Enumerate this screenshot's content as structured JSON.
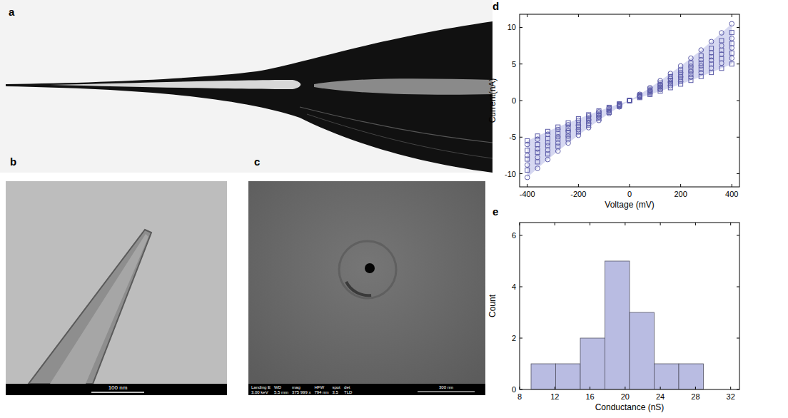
{
  "panel_labels": [
    "a",
    "b",
    "c",
    "d",
    "e"
  ],
  "images": {
    "b": {
      "scale_bar": "100 nm"
    },
    "c": {
      "scale_bar": "300 nm",
      "info_header": [
        "Landing E",
        "WD",
        "mag",
        "HFW",
        "spot",
        "det"
      ],
      "info_values": [
        "3.00 keV",
        "5.5 mm",
        "375 999 x",
        "794 nm",
        "3.5",
        "TLD"
      ]
    }
  },
  "chart_data": [
    {
      "type": "scatter",
      "xlabel": "Voltage (mV)",
      "ylabel": "Current(nA)",
      "x": [
        -400,
        -360,
        -320,
        -280,
        -240,
        -200,
        -160,
        -120,
        -80,
        -40,
        0,
        40,
        80,
        120,
        160,
        200,
        240,
        280,
        320,
        360,
        400
      ],
      "series": [
        {
          "marker": "circle",
          "color": "#5c5ca8",
          "values": [
            -10.5,
            -9.26,
            -8.06,
            -6.91,
            -5.8,
            -4.73,
            -3.7,
            -2.71,
            -1.76,
            -0.86,
            0,
            0.86,
            1.76,
            2.71,
            3.7,
            4.73,
            5.8,
            6.91,
            8.06,
            9.26,
            10.5
          ]
        },
        {
          "marker": "square",
          "color": "#5c5ca8",
          "values": [
            -9.5,
            -8.38,
            -7.3,
            -6.25,
            -5.24,
            -4.28,
            -3.34,
            -2.45,
            -1.6,
            -0.78,
            0,
            0.76,
            1.56,
            2.4,
            3.27,
            4.19,
            5.13,
            6.12,
            7.14,
            8.2,
            9.3
          ]
        },
        {
          "marker": "circle",
          "color": "#5c5ca8",
          "values": [
            -8.8,
            -7.76,
            -6.76,
            -5.79,
            -4.86,
            -3.96,
            -3.1,
            -2.27,
            -1.48,
            -0.72,
            0,
            0.7,
            1.43,
            2.19,
            2.99,
            3.83,
            4.69,
            5.59,
            6.53,
            7.5,
            8.5
          ]
        },
        {
          "marker": "square",
          "color": "#5c5ca8",
          "values": [
            -8.0,
            -7.06,
            -6.14,
            -5.26,
            -4.42,
            -3.6,
            -2.82,
            -2.06,
            -1.34,
            -0.66,
            0,
            0.64,
            1.31,
            2.01,
            2.75,
            3.51,
            4.31,
            5.13,
            5.99,
            6.88,
            7.8
          ]
        },
        {
          "marker": "circle",
          "color": "#5c5ca8",
          "values": [
            -7.5,
            -6.62,
            -5.76,
            -4.94,
            -4.14,
            -3.38,
            -2.64,
            -1.94,
            -1.26,
            -0.62,
            0,
            0.59,
            1.21,
            1.86,
            2.53,
            3.24,
            3.97,
            4.74,
            5.53,
            6.35,
            7.2
          ]
        },
        {
          "marker": "square",
          "color": "#5c5ca8",
          "values": [
            -6.8,
            -6.0,
            -5.22,
            -4.47,
            -3.75,
            -3.06,
            -2.39,
            -1.75,
            -1.14,
            -0.56,
            0,
            0.53,
            1.09,
            1.68,
            2.29,
            2.93,
            3.59,
            4.28,
            4.99,
            5.73,
            6.5
          ]
        },
        {
          "marker": "circle",
          "color": "#5c5ca8",
          "values": [
            -6.0,
            -5.29,
            -4.61,
            -3.95,
            -3.31,
            -2.7,
            -2.11,
            -1.55,
            -1.01,
            -0.49,
            0,
            0.48,
            0.97,
            1.5,
            2.04,
            2.61,
            3.2,
            3.82,
            4.45,
            5.12,
            5.8
          ]
        },
        {
          "marker": "square",
          "color": "#5c5ca8",
          "values": [
            -5.5,
            -4.85,
            -4.22,
            -3.62,
            -3.04,
            -2.48,
            -1.94,
            -1.42,
            -0.92,
            -0.45,
            0,
            0.41,
            0.84,
            1.29,
            1.76,
            2.25,
            2.76,
            3.29,
            3.84,
            4.41,
            5.0
          ]
        }
      ],
      "xlim": [
        -430,
        430
      ],
      "xticks": [
        -400,
        -200,
        0,
        200,
        400
      ],
      "ylim": [
        -11.8,
        11.8
      ],
      "yticks": [
        -10,
        -5,
        0,
        5,
        10
      ]
    },
    {
      "type": "histogram",
      "xlabel": "Conductance (nS)",
      "ylabel": "Count",
      "bins": [
        9.3,
        12.1,
        14.9,
        17.7,
        20.5,
        23.3,
        26.1,
        28.9
      ],
      "values": [
        1,
        1,
        2,
        5,
        3,
        1,
        1
      ],
      "color": "#b9bce2",
      "xlim": [
        8,
        33
      ],
      "xticks": [
        8,
        12,
        16,
        20,
        24,
        28,
        32
      ],
      "ylim": [
        0,
        6.5
      ],
      "yticks": [
        0,
        2,
        4,
        6
      ]
    }
  ]
}
